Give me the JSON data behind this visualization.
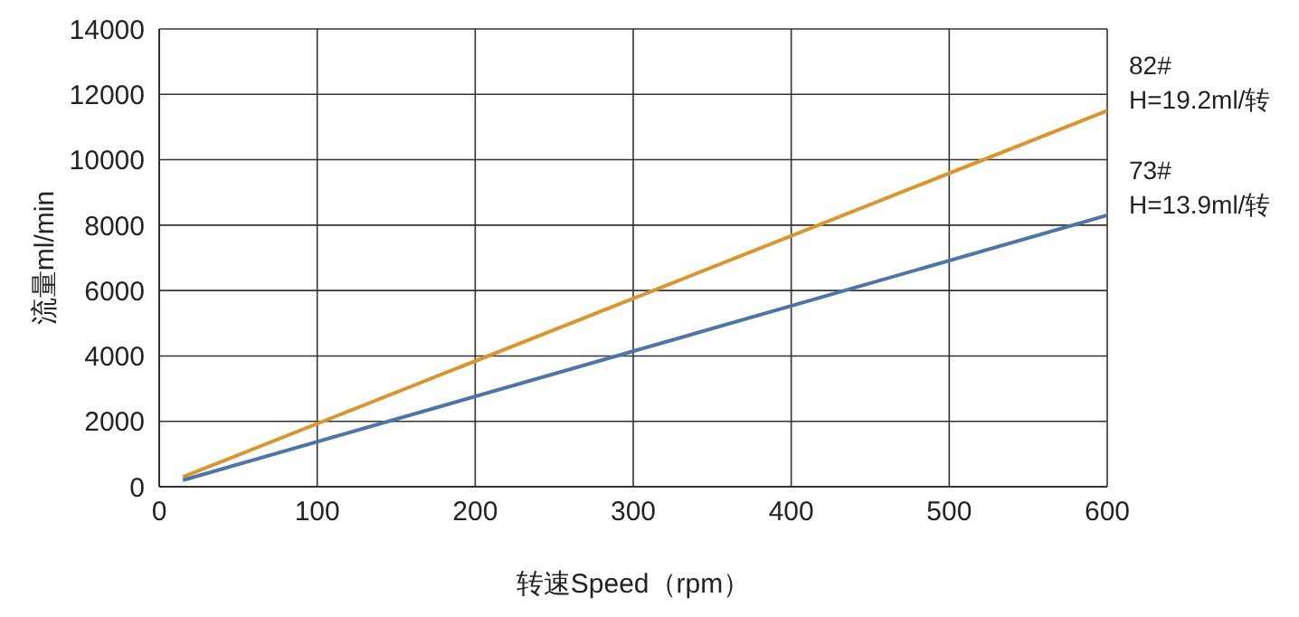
{
  "chart_data": {
    "type": "line",
    "xlabel": "转速Speed（rpm）",
    "ylabel": "流量ml/min",
    "xlim": [
      0,
      600
    ],
    "xticks": [
      0,
      100,
      200,
      300,
      400,
      500,
      600
    ],
    "ylim": [
      0,
      14000
    ],
    "yticks": [
      0,
      2000,
      4000,
      6000,
      8000,
      10000,
      12000,
      14000
    ],
    "grid": true,
    "legend": false,
    "marker": "none",
    "line_style": "solid",
    "x": [
      15,
      600
    ],
    "series": [
      {
        "name": "82#",
        "color": "#d9962e",
        "values": [
          300,
          11500
        ]
      },
      {
        "name": "73#",
        "color": "#4f74a8",
        "values": [
          200,
          8300
        ]
      }
    ],
    "annotations": [
      {
        "text": "H=19.2ml/转",
        "x": 600,
        "y": 11500
      },
      {
        "text": "H=13.9ml/转",
        "x": 600,
        "y": 8300
      }
    ]
  }
}
